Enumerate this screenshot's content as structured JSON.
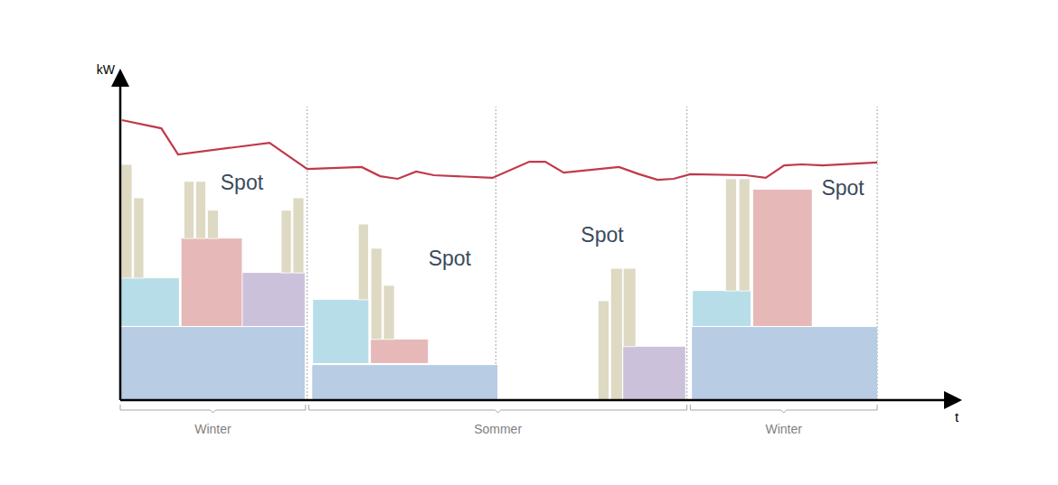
{
  "chart_data": {
    "type": "bar",
    "xlabel": "t",
    "ylabel": "kW",
    "xlim": [
      0,
      100
    ],
    "ylim": [
      0,
      100
    ],
    "xticks": [],
    "yticks": [],
    "tick_labels": false,
    "grid": false,
    "periods": [
      22.3,
      44.8,
      67.6,
      90.3
    ],
    "seasons": [
      {
        "label": "Winter",
        "start": 0,
        "end": 22.1
      },
      {
        "label": "Sommer",
        "start": 22.5,
        "end": 67.6
      },
      {
        "label": "Winter",
        "start": 68.0,
        "end": 90.3
      }
    ],
    "annotations": [
      {
        "text": "Spot",
        "x": 14.5,
        "y": 65.8
      },
      {
        "text": "Spot",
        "x": 39.3,
        "y": 42.7
      },
      {
        "text": "Spot",
        "x": 57.5,
        "y": 49.9
      },
      {
        "text": "Spot",
        "x": 86.2,
        "y": 64.2
      }
    ],
    "series": [
      {
        "type": "bar",
        "color": "#b8cce4",
        "x0": [
          0,
          22.9,
          68.2
        ],
        "x1": [
          22.0,
          45.0,
          90.3
        ],
        "low": [
          0,
          0,
          0
        ],
        "high": [
          22.3,
          10.7,
          22.3
        ]
      },
      {
        "type": "bar",
        "color": "#b7dee8",
        "x0": [
          0.1,
          23.0,
          68.3
        ],
        "x1": [
          7.0,
          29.6,
          75.2
        ],
        "low": [
          22.6,
          11.3,
          22.6
        ],
        "high": [
          37.2,
          30.6,
          33.3
        ]
      },
      {
        "type": "bar",
        "color": "#e6b9b8",
        "x0": [
          7.3,
          29.9,
          75.5
        ],
        "x1": [
          14.5,
          36.7,
          82.5
        ],
        "low": [
          22.6,
          11.3,
          22.6
        ],
        "high": [
          49.3,
          18.5,
          64.2
        ]
      },
      {
        "type": "bar",
        "color": "#ccc1da",
        "x0": [
          14.6,
          60.0
        ],
        "x1": [
          22.0,
          67.4
        ],
        "low": [
          22.6,
          0
        ],
        "high": [
          38.8,
          16.3
        ]
      },
      {
        "type": "bar",
        "color": "#ddd9c3",
        "x0": [
          0.1,
          1.6,
          7.6,
          9.0,
          10.4,
          19.2,
          20.6,
          28.4,
          29.9,
          31.4,
          57.0,
          58.5,
          60.0,
          72.2,
          73.8
        ],
        "x1": [
          1.4,
          2.8,
          8.8,
          10.2,
          11.7,
          20.4,
          21.9,
          29.6,
          31.2,
          32.7,
          58.3,
          59.9,
          61.5,
          73.5,
          75.1
        ],
        "low": [
          37.2,
          37.2,
          49.3,
          49.3,
          49.3,
          38.8,
          38.8,
          30.6,
          18.5,
          18.5,
          0,
          0,
          16.3,
          33.3,
          33.3
        ],
        "high": [
          71.9,
          61.7,
          66.7,
          66.7,
          57.9,
          57.9,
          61.7,
          53.7,
          46.3,
          35.0,
          30.3,
          40.2,
          40.2,
          67.5,
          67.5
        ]
      },
      {
        "type": "line",
        "color": "#c0394b",
        "x": [
          0.2,
          4.9,
          6.9,
          17.8,
          22.3,
          28.8,
          31.0,
          33.1,
          35.3,
          37.4,
          44.4,
          48.8,
          50.7,
          52.9,
          59.5,
          61.9,
          64.1,
          66.0,
          68.0,
          74.6,
          77.0,
          79.2,
          81.3,
          83.8,
          90.3
        ],
        "values": [
          85.4,
          82.9,
          74.9,
          78.5,
          70.5,
          71.1,
          68.3,
          67.5,
          69.7,
          68.6,
          67.8,
          72.7,
          72.7,
          69.4,
          71.1,
          68.9,
          67.2,
          67.5,
          68.9,
          68.6,
          67.8,
          71.6,
          71.9,
          71.6,
          72.5
        ]
      }
    ]
  }
}
